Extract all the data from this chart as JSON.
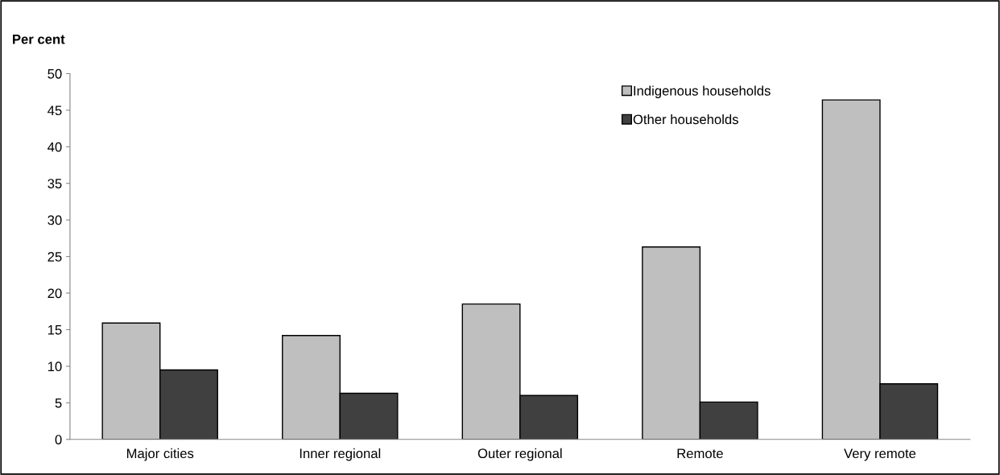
{
  "chart_data": {
    "type": "bar",
    "ylabel": "Per cent",
    "categories": [
      "Major cities",
      "Inner regional",
      "Outer regional",
      "Remote",
      "Very remote"
    ],
    "series": [
      {
        "name": "Indigenous households",
        "color": "#bfbfbf",
        "values": [
          15.9,
          14.2,
          18.5,
          26.3,
          46.4
        ]
      },
      {
        "name": "Other households",
        "color": "#404040",
        "values": [
          9.5,
          6.3,
          6.0,
          5.1,
          7.6
        ]
      }
    ],
    "ylim": [
      0,
      50
    ],
    "yticks": [
      0,
      5,
      10,
      15,
      20,
      25,
      30,
      35,
      40,
      45,
      50
    ],
    "grid": false,
    "legend": "top right"
  }
}
